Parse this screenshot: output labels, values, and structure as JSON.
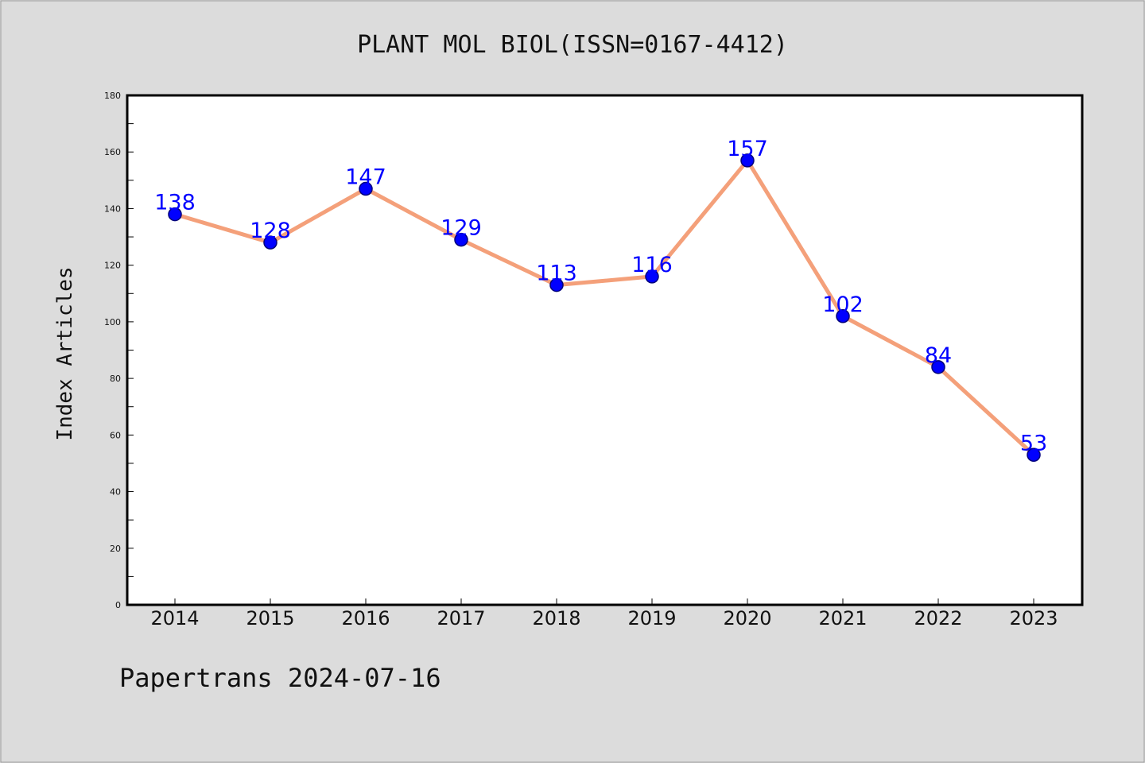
{
  "footer": {
    "text": "Papertrans 2024-07-16"
  },
  "colors": {
    "background": "#dcdcdc",
    "plot_background": "#ffffff",
    "line": "#f4a07a",
    "marker_fill": "#0000ff",
    "marker_stroke": "#00007a",
    "data_label": "#0000ff"
  },
  "chart_data": {
    "type": "line",
    "title": "PLANT MOL BIOL(ISSN=0167-4412)",
    "xlabel": "",
    "ylabel": "Index Articles",
    "categories": [
      "2014",
      "2015",
      "2016",
      "2017",
      "2018",
      "2019",
      "2020",
      "2021",
      "2022",
      "2023"
    ],
    "values": [
      138,
      128,
      147,
      129,
      113,
      116,
      157,
      102,
      84,
      53
    ],
    "ylim": [
      0,
      180
    ],
    "yticks": [
      0,
      20,
      40,
      60,
      80,
      100,
      120,
      140,
      160,
      180
    ],
    "grid": false,
    "legend": "none",
    "data_labels": true
  }
}
